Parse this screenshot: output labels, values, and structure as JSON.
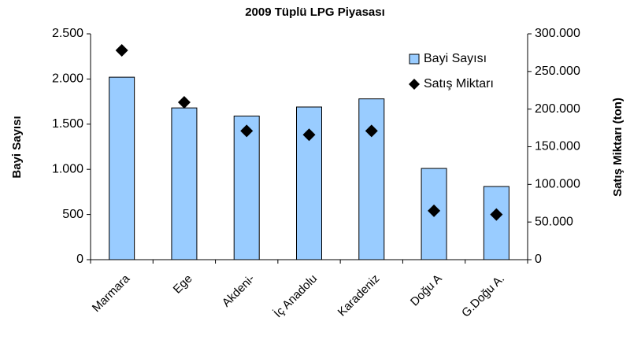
{
  "chart_data": {
    "type": "bar",
    "title": "2009 Tüplü LPG Piyasası",
    "y_label": "Bayi Sayısı",
    "y2_label": "Satış Miktarı (ton)",
    "categories": [
      "Marmara",
      "Ege",
      "Akdeni-",
      "İç Anadolu",
      "Karadeniz",
      "Doğu A",
      "G.Doğu A."
    ],
    "series": [
      {
        "name": "Bayi Sayısı",
        "type": "bar",
        "color": "#99ccff",
        "values": [
          2020,
          1680,
          1590,
          1690,
          1780,
          1010,
          810
        ]
      },
      {
        "name": "Satış Miktarı",
        "type": "scatter",
        "axis": "y2",
        "color": "#000000",
        "values": [
          278000,
          209000,
          171000,
          166000,
          171000,
          65000,
          60000
        ]
      }
    ],
    "ylim": [
      0,
      2500
    ],
    "yticks": [
      0,
      500,
      {
        "value": 1000,
        "label": "1.000"
      },
      {
        "value": 1500,
        "label": "1.500"
      },
      {
        "value": 2000,
        "label": "2.000"
      },
      {
        "value": 2500,
        "label": "2.500"
      }
    ],
    "y2lim": [
      0,
      300000
    ],
    "y2ticks": [
      0,
      {
        "value": 50000,
        "label": "50.000"
      },
      {
        "value": 100000,
        "label": "100.000"
      },
      {
        "value": 150000,
        "label": "150.000"
      },
      {
        "value": 200000,
        "label": "200.000"
      },
      {
        "value": 250000,
        "label": "250.000"
      },
      {
        "value": 300000,
        "label": "300.000"
      }
    ],
    "legend": "top-right",
    "grid": false
  }
}
